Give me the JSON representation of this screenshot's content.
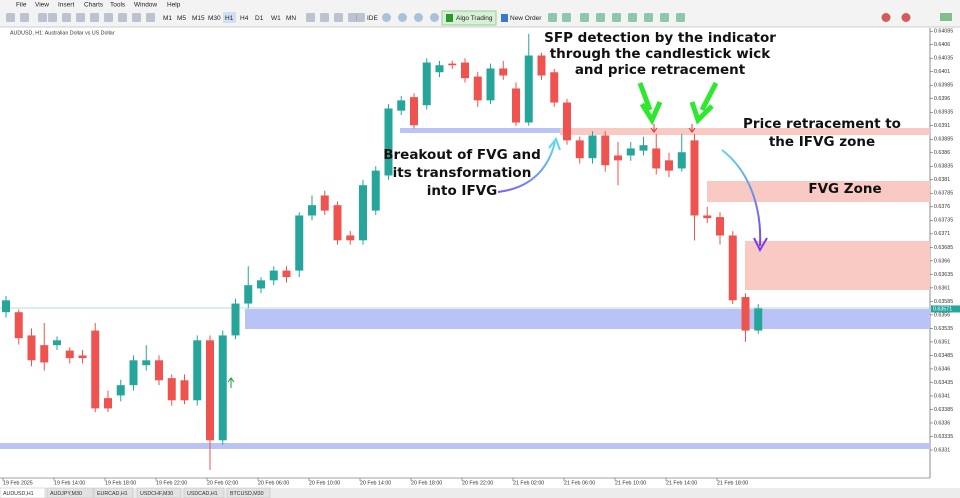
{
  "menu": [
    "File",
    "View",
    "Insert",
    "Charts",
    "Tools",
    "Window",
    "Help"
  ],
  "toolbar": {
    "timeframes": [
      "M1",
      "M5",
      "M15",
      "M30",
      "H1",
      "H4",
      "D1",
      "W1",
      "MN"
    ],
    "ide": "IDE",
    "algo_trading": "Algo Trading",
    "new_order": "New Order"
  },
  "chart_data": {
    "type": "candlestick",
    "title": "AUDUSD, H1:  Australian Dollar vs US Dollar",
    "categories": [
      "19 Feb 2025",
      null,
      null,
      null,
      "19 Feb 14:00",
      null,
      null,
      null,
      "19 Feb 18:00",
      null,
      null,
      null,
      "19 Feb 22:00",
      null,
      null,
      null,
      "20 Feb 02:00",
      null,
      null,
      null,
      "20 Feb 06:00",
      null,
      null,
      null,
      "20 Feb 10:00",
      null,
      null,
      null,
      "20 Feb 14:00",
      null,
      null,
      null,
      "20 Feb 18:00",
      null,
      null,
      null,
      "20 Feb 22:00",
      null,
      null,
      null,
      "21 Feb 02:00",
      null,
      null,
      null,
      "21 Feb 06:00",
      null,
      null,
      null,
      "21 Feb 10:00",
      null,
      null,
      null,
      "21 Feb 14:00",
      null,
      null,
      null,
      "21 Feb 18:00",
      null,
      null,
      null
    ],
    "open": [
      0.63565,
      0.63565,
      0.63522,
      0.63504,
      0.63504,
      0.63494,
      0.63485,
      0.63531,
      0.63406,
      0.63411,
      0.6343,
      0.63467,
      0.63476,
      0.63443,
      0.63439,
      0.63402,
      0.63513,
      0.63328,
      0.63522,
      0.63581,
      0.63609,
      0.63624,
      0.63642,
      0.63642,
      0.63744,
      0.63781,
      0.63763,
      0.63707,
      0.63698,
      0.63753,
      0.63818,
      0.63938,
      0.63963,
      0.63948,
      0.64009,
      0.64025,
      0.64027,
      0.64001,
      0.63957,
      0.64016,
      0.63979,
      0.63916,
      0.6404,
      0.64009,
      0.63953,
      0.63883,
      0.6385,
      0.63892,
      0.63855,
      0.63855,
      0.63864,
      0.63868,
      0.63846,
      0.63831,
      0.63883,
      0.63744,
      0.63741,
      0.63707,
      0.63593,
      0.63531
    ],
    "high": [
      0.63595,
      0.6357,
      0.63535,
      0.63545,
      0.6352,
      0.635,
      0.63495,
      0.63545,
      0.6342,
      0.6344,
      0.63485,
      0.63504,
      0.63485,
      0.6345,
      0.6345,
      0.63522,
      0.63522,
      0.63531,
      0.6359,
      0.6365,
      0.6363,
      0.6365,
      0.6365,
      0.6375,
      0.63781,
      0.6379,
      0.6377,
      0.63715,
      0.6381,
      0.63835,
      0.6395,
      0.63965,
      0.6397,
      0.64035,
      0.6403,
      0.6403,
      0.64035,
      0.6401,
      0.64025,
      0.6403,
      0.6399,
      0.6408,
      0.64045,
      0.64015,
      0.6396,
      0.6389,
      0.639,
      0.639,
      0.6388,
      0.6388,
      0.6389,
      0.63895,
      0.6386,
      0.63895,
      0.63895,
      0.6376,
      0.6375,
      0.63715,
      0.636,
      0.6358
    ],
    "low": [
      0.63555,
      0.63505,
      0.63465,
      0.63457,
      0.63495,
      0.6347,
      0.6347,
      0.6338,
      0.6338,
      0.634,
      0.6342,
      0.63457,
      0.6343,
      0.63392,
      0.63395,
      0.63392,
      0.63273,
      0.6332,
      0.63515,
      0.63572,
      0.636,
      0.63615,
      0.6362,
      0.6363,
      0.63735,
      0.63745,
      0.6369,
      0.6369,
      0.6369,
      0.63745,
      0.6381,
      0.6393,
      0.63905,
      0.6394,
      0.64,
      0.64015,
      0.6399,
      0.63945,
      0.6395,
      0.63995,
      0.6391,
      0.6391,
      0.63995,
      0.63945,
      0.63875,
      0.6384,
      0.6384,
      0.63825,
      0.638,
      0.63845,
      0.63855,
      0.6382,
      0.63815,
      0.63825,
      0.63698,
      0.6373,
      0.6369,
      0.6358,
      0.6351,
      0.63525
    ],
    "close": [
      0.63587,
      0.63517,
      0.63476,
      0.63472,
      0.63513,
      0.6348,
      0.6348,
      0.63387,
      0.63387,
      0.6343,
      0.63476,
      0.63476,
      0.63439,
      0.63402,
      0.63402,
      0.63513,
      0.63328,
      0.63522,
      0.63581,
      0.63615,
      0.63624,
      0.63642,
      0.6363,
      0.63744,
      0.63763,
      0.63753,
      0.63698,
      0.63698,
      0.638,
      0.63827,
      0.63942,
      0.63957,
      0.63911,
      0.64027,
      0.64022,
      0.64022,
      0.63998,
      0.63957,
      0.64016,
      0.64003,
      0.63916,
      0.6404,
      0.64003,
      0.63953,
      0.63883,
      0.6385,
      0.63892,
      0.63837,
      0.63846,
      0.63868,
      0.63874,
      0.63831,
      0.63827,
      0.63861,
      0.63744,
      0.63739,
      0.63707,
      0.63587,
      0.63531,
      0.63572
    ],
    "up_color": "#26a69a",
    "down_color": "#ef5350",
    "ylim": [
      0.63273,
      0.64102
    ],
    "yticks": [
      0.64085,
      0.6406,
      0.64035,
      0.6401,
      0.63985,
      0.6396,
      0.63935,
      0.6391,
      0.63885,
      0.6386,
      0.63835,
      0.6381,
      0.63785,
      0.6376,
      0.63735,
      0.6371,
      0.63685,
      0.6366,
      0.63635,
      0.6361,
      0.63585,
      0.6356,
      0.63535,
      0.6351,
      0.63485,
      0.6346,
      0.63435,
      0.6341,
      0.63385,
      0.6336,
      0.63335,
      0.6331
    ],
    "current_price": 0.63571,
    "grid": false,
    "annotations": {
      "sfp": [
        "SFP detection by the indicator",
        "through the candlestick wick",
        "and price retracement"
      ],
      "retracement": [
        "Price retracement to",
        "the IFVG zone"
      ],
      "fvg_zone": [
        "FVG Zone"
      ],
      "breakout": [
        "Breakout of FVG and",
        "its transformation",
        "into IFVG"
      ]
    }
  },
  "tabs": [
    "AUDUSD,H1",
    "AUDJPY,M30",
    "EURCAD,H1",
    "USDCHF,M30",
    "USDCAD,H1",
    "BTCUSD,M30"
  ]
}
